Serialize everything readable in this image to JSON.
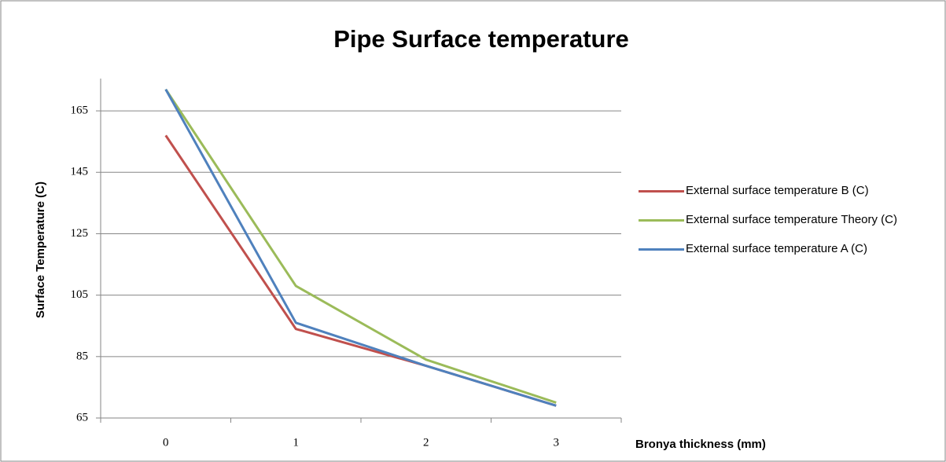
{
  "chart_data": {
    "type": "line",
    "title": "Pipe Surface temperature",
    "x_label": "Bronya thickness (mm)",
    "y_label": "Surface Temperature (C)",
    "categories": [
      "0",
      "1",
      "2",
      "3"
    ],
    "series": [
      {
        "name": "External surface temperature B (C)",
        "color": "#c0504d",
        "values": [
          157,
          94,
          82,
          69
        ]
      },
      {
        "name": "External surface temperature Theory (C)",
        "color": "#9bbb59",
        "values": [
          172,
          108,
          84,
          70
        ]
      },
      {
        "name": "External surface temperature A (C)",
        "color": "#4f81bd",
        "values": [
          172,
          96,
          82,
          69
        ]
      }
    ],
    "ylim": [
      65,
      175
    ],
    "yticks": [
      65,
      85,
      105,
      125,
      145,
      165
    ],
    "grid": true
  }
}
